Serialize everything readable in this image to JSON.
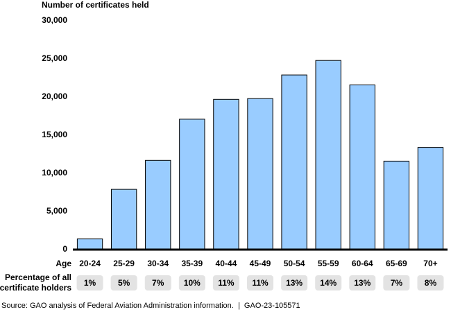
{
  "chart_data": {
    "type": "bar",
    "y_label": "Number of certificates held",
    "x_label": "Age",
    "categories": [
      "20-24",
      "25-29",
      "30-34",
      "35-39",
      "40-44",
      "45-49",
      "50-54",
      "55-59",
      "60-64",
      "65-69",
      "70+"
    ],
    "values": [
      1400,
      7900,
      11700,
      17100,
      19700,
      19800,
      22900,
      24800,
      21600,
      11600,
      13400
    ],
    "color": "#99ccff",
    "ylim": [
      0,
      30000
    ],
    "yticks": [
      0,
      {
        "value": 5000,
        "label": "5,000"
      },
      {
        "value": 10000,
        "label": "10,000"
      },
      {
        "value": 15000,
        "label": "15,000"
      },
      {
        "value": 20000,
        "label": "20,000"
      },
      {
        "value": 25000,
        "label": "25,000"
      },
      {
        "value": 30000,
        "label": "30,000"
      }
    ],
    "grid": false,
    "percentages": {
      "label": [
        "Percentage of all",
        "certificate holders"
      ],
      "values": [
        1,
        5,
        7,
        10,
        11,
        11,
        13,
        14,
        13,
        7,
        8
      ],
      "value_labels": [
        "1%",
        "5%",
        "7%",
        "10%",
        "11%",
        "11%",
        "13%",
        "14%",
        "13%",
        "7%",
        "8%"
      ]
    },
    "source": "Source: GAO analysis of Federal Aviation Administration information.  |  GAO-23-105571"
  }
}
